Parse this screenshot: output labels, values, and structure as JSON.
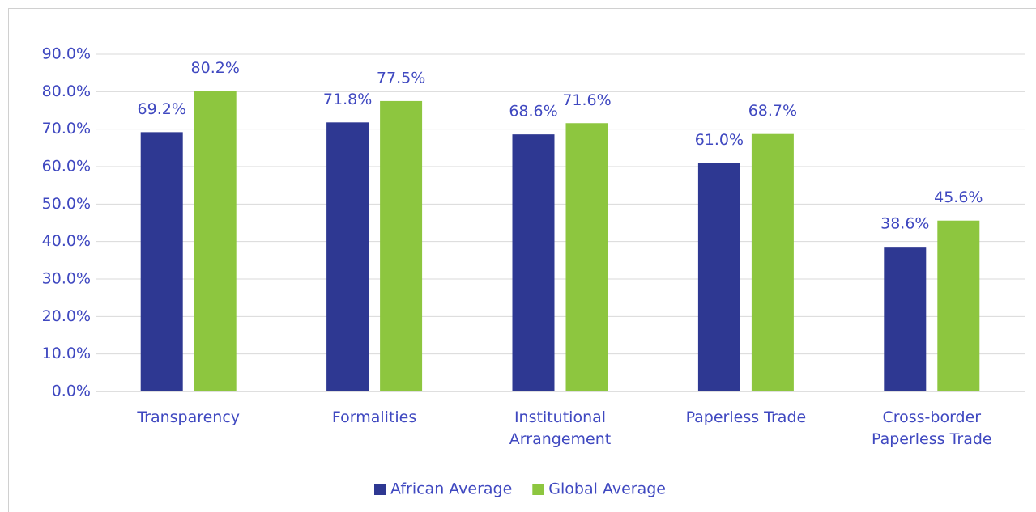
{
  "chart_data": {
    "type": "bar",
    "categories": [
      "Transparency",
      "Formalities",
      "Institutional Arrangement",
      "Paperless Trade",
      "Cross-border Paperless Trade"
    ],
    "series": [
      {
        "name": "African Average",
        "color": "#2e3892",
        "values": [
          69.2,
          71.8,
          68.6,
          61.0,
          38.6
        ],
        "value_labels": [
          "69.2%",
          "71.8%",
          "68.6%",
          "61.0%",
          "38.6%"
        ]
      },
      {
        "name": "Global Average",
        "color": "#8dc63f",
        "values": [
          80.2,
          77.5,
          71.6,
          68.7,
          45.6
        ],
        "value_labels": [
          "80.2%",
          "77.5%",
          "71.6%",
          "68.7%",
          "45.6%"
        ]
      }
    ],
    "ylim": [
      0,
      90
    ],
    "yticks": [
      {
        "value": 0,
        "label": "0.0%"
      },
      {
        "value": 10,
        "label": "10.0%"
      },
      {
        "value": 20,
        "label": "20.0%"
      },
      {
        "value": 30,
        "label": "30.0%"
      },
      {
        "value": 40,
        "label": "40.0%"
      },
      {
        "value": 50,
        "label": "50.0%"
      },
      {
        "value": 60,
        "label": "60.0%"
      },
      {
        "value": 70,
        "label": "70.0%"
      },
      {
        "value": 80,
        "label": "80.0%"
      },
      {
        "value": 90,
        "label": "90.0%"
      }
    ],
    "grid": true,
    "legend": "bottom"
  }
}
